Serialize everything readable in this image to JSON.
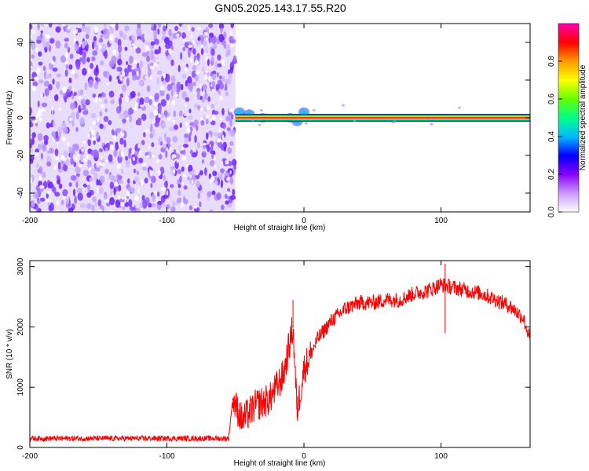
{
  "title": "GN05.2025.143.17.55.R20",
  "chart_data": [
    {
      "type": "heatmap",
      "xlabel": "Height of straight line (km)",
      "ylabel": "Frequency (Hz)",
      "xlim": [
        -200,
        165
      ],
      "ylim": [
        -50,
        50
      ],
      "xticks": [
        "-200",
        "-100",
        "0",
        "100"
      ],
      "yticks": [
        "-40",
        "-20",
        "0",
        "20",
        "40"
      ],
      "colorbar": {
        "label": "Normalized spectral amplitude",
        "range": [
          0,
          1
        ],
        "ticks": [
          "0.0",
          "0.2",
          "0.4",
          "0.6",
          "0.8"
        ],
        "colors": [
          "#ffffff",
          "#cc99ff",
          "#8800ff",
          "#0000ff",
          "#00bbff",
          "#00ff88",
          "#66ff00",
          "#ffff00",
          "#ff9900",
          "#ff0000",
          "#ff00aa"
        ]
      },
      "regions": [
        {
          "name": "noise",
          "x": [
            -200,
            -50
          ],
          "freq": [
            -50,
            50
          ],
          "amplitude": [
            0.0,
            0.3
          ]
        },
        {
          "name": "signal",
          "x": [
            -50,
            165
          ],
          "freq": [
            0,
            0
          ],
          "amplitude": 1.0
        }
      ]
    },
    {
      "type": "line",
      "xlabel": "Height of straight line (km)",
      "ylabel": "SNR (10 * v/v)",
      "xlim": [
        -200,
        165
      ],
      "ylim": [
        0,
        3100
      ],
      "xticks": [
        "-200",
        "-100",
        "0",
        "100"
      ],
      "yticks": [
        "0",
        "1000",
        "2000",
        "3000"
      ],
      "color": "#ff0000",
      "x": [
        -200,
        -150,
        -100,
        -55,
        -52,
        -45,
        -35,
        -25,
        -15,
        -8,
        -5,
        0,
        10,
        20,
        30,
        40,
        50,
        60,
        70,
        80,
        90,
        100,
        110,
        120,
        130,
        140,
        150,
        160,
        165
      ],
      "y": [
        150,
        150,
        150,
        150,
        800,
        450,
        700,
        800,
        1200,
        2000,
        600,
        1300,
        1800,
        2100,
        2300,
        2400,
        2400,
        2450,
        2450,
        2550,
        2600,
        2700,
        2650,
        2600,
        2550,
        2450,
        2350,
        2150,
        1800
      ]
    }
  ]
}
